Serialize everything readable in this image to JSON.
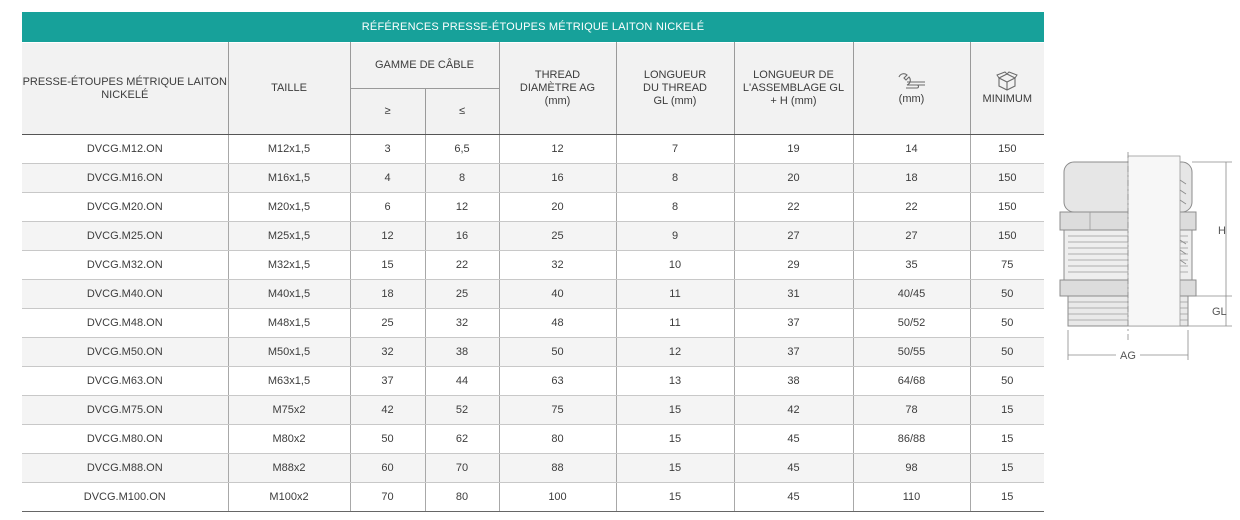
{
  "table": {
    "title": "RÉFÉRENCES PRESSE-ÉTOUPES MÉTRIQUE LAITON NICKELÉ",
    "headers": {
      "reference": "PRESSE-ÉTOUPES MÉTRIQUE LAITON NICKELÉ",
      "taille": "TAILLE",
      "gamme": "GAMME DE CÂBLE",
      "gamme_min": "≥",
      "gamme_max": "≤",
      "thread": "THREAD DIAMÈTRE AG (mm)",
      "longueur_thread": "LONGUEUR DU THREAD GL (mm)",
      "longueur_assemblage": "LONGUEUR DE L'ASSEMBLAGE GL + H (mm)",
      "wrench": "(mm)",
      "minimum": "MINIMUM"
    },
    "icons": {
      "wrench": "wrench-icon",
      "box": "box-icon"
    },
    "rows": [
      [
        "DVCG.M12.ON",
        "M12x1,5",
        "3",
        "6,5",
        "12",
        "7",
        "19",
        "14",
        "150"
      ],
      [
        "DVCG.M16.ON",
        "M16x1,5",
        "4",
        "8",
        "16",
        "8",
        "20",
        "18",
        "150"
      ],
      [
        "DVCG.M20.ON",
        "M20x1,5",
        "6",
        "12",
        "20",
        "8",
        "22",
        "22",
        "150"
      ],
      [
        "DVCG.M25.ON",
        "M25x1,5",
        "12",
        "16",
        "25",
        "9",
        "27",
        "27",
        "150"
      ],
      [
        "DVCG.M32.ON",
        "M32x1,5",
        "15",
        "22",
        "32",
        "10",
        "29",
        "35",
        "75"
      ],
      [
        "DVCG.M40.ON",
        "M40x1,5",
        "18",
        "25",
        "40",
        "11",
        "31",
        "40/45",
        "50"
      ],
      [
        "DVCG.M48.ON",
        "M48x1,5",
        "25",
        "32",
        "48",
        "11",
        "37",
        "50/52",
        "50"
      ],
      [
        "DVCG.M50.ON",
        "M50x1,5",
        "32",
        "38",
        "50",
        "12",
        "37",
        "50/55",
        "50"
      ],
      [
        "DVCG.M63.ON",
        "M63x1,5",
        "37",
        "44",
        "63",
        "13",
        "38",
        "64/68",
        "50"
      ],
      [
        "DVCG.M75.ON",
        "M75x2",
        "42",
        "52",
        "75",
        "15",
        "42",
        "78",
        "15"
      ],
      [
        "DVCG.M80.ON",
        "M80x2",
        "50",
        "62",
        "80",
        "15",
        "45",
        "86/88",
        "15"
      ],
      [
        "DVCG.M88.ON",
        "M88x2",
        "60",
        "70",
        "88",
        "15",
        "45",
        "98",
        "15"
      ],
      [
        "DVCG.M100.ON",
        "M100x2",
        "70",
        "80",
        "100",
        "15",
        "45",
        "110",
        "15"
      ]
    ]
  },
  "drawing": {
    "label_h": "H",
    "label_gl": "GL",
    "label_ag": "AG"
  },
  "colors": {
    "header_teal": "#17a19a",
    "header_gray": "#f2f2f2",
    "row_alt": "#f4f4f4"
  }
}
